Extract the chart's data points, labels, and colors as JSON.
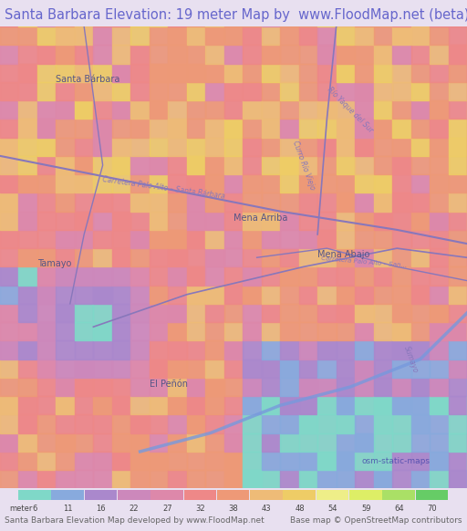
{
  "title": "Santa Barbara Elevation: 19 meter Map by  www.FloodMap.net (beta)",
  "title_color": "#6666cc",
  "title_fontsize": 10.5,
  "bg_color": "#e8e0f0",
  "map_bg": "#d4a8d0",
  "footer_left": "Santa Barbara Elevation Map developed by www.FloodMap.net",
  "footer_right": "Base map © OpenStreetMap contributors",
  "footer_fontsize": 6.5,
  "colorbar_colors": [
    "#7fd8c8",
    "#88aadd",
    "#aa88cc",
    "#cc88bb",
    "#dd88aa",
    "#ee8888",
    "#ee9977",
    "#eebb77",
    "#eecc66",
    "#eeee88",
    "#ddee66",
    "#aae066",
    "#66cc66"
  ],
  "colorbar_labels": [
    "6",
    "11",
    "16",
    "22",
    "27",
    "32",
    "38",
    "43",
    "48",
    "54",
    "59",
    "64",
    "70"
  ],
  "osm_text": "osm-static-maps",
  "osm_color": "#4444aa",
  "road_color": "#8877bb",
  "river_color": "#7799dd",
  "place_color": "#555588",
  "label_color": "#8877bb",
  "figsize": [
    5.12,
    5.82
  ],
  "dpi": 100
}
